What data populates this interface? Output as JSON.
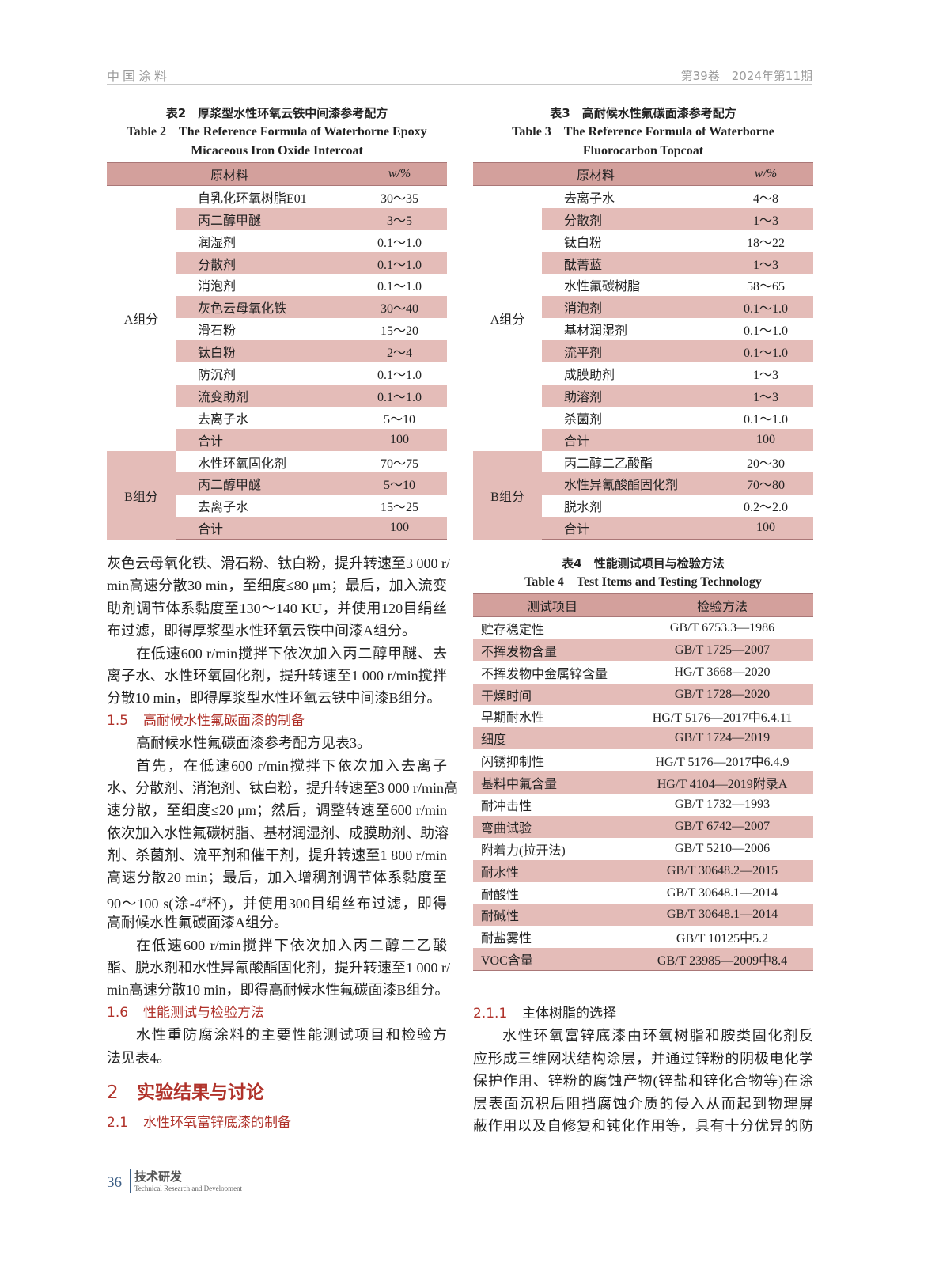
{
  "header": {
    "journal": "中国涂料",
    "issue": "第39卷　2024年第11期"
  },
  "table2": {
    "title_cn": "表2　厚浆型水性环氧云铁中间漆参考配方",
    "title_en_1": "Table 2　The Reference Formula of Waterborne Epoxy",
    "title_en_2": "Micaceous Iron Oxide Intercoat",
    "headers": [
      "原材料",
      "w/%"
    ],
    "groups": [
      {
        "name": "A组分",
        "rows": [
          [
            "自乳化环氧树脂E01",
            "30～35"
          ],
          [
            "丙二醇甲醚",
            "3～5"
          ],
          [
            "润湿剂",
            "0.1～1.0"
          ],
          [
            "分散剂",
            "0.1～1.0"
          ],
          [
            "消泡剂",
            "0.1～1.0"
          ],
          [
            "灰色云母氧化铁",
            "30～40"
          ],
          [
            "滑石粉",
            "15～20"
          ],
          [
            "钛白粉",
            "2～4"
          ],
          [
            "防沉剂",
            "0.1～1.0"
          ],
          [
            "流变助剂",
            "0.1～1.0"
          ],
          [
            "去离子水",
            "5～10"
          ],
          [
            "合计",
            "100"
          ]
        ]
      },
      {
        "name": "B组分",
        "rows": [
          [
            "水性环氧固化剂",
            "70～75"
          ],
          [
            "丙二醇甲醚",
            "5～10"
          ],
          [
            "去离子水",
            "15～25"
          ],
          [
            "合计",
            "100"
          ]
        ]
      }
    ]
  },
  "table3": {
    "title_cn": "表3　高耐候水性氟碳面漆参考配方",
    "title_en_1": "Table 3　The Reference Formula of Waterborne",
    "title_en_2": "Fluorocarbon Topcoat",
    "headers": [
      "原材料",
      "w/%"
    ],
    "groups": [
      {
        "name": "A组分",
        "rows": [
          [
            "去离子水",
            "4～8"
          ],
          [
            "分散剂",
            "1～3"
          ],
          [
            "钛白粉",
            "18～22"
          ],
          [
            "酞菁蓝",
            "1～3"
          ],
          [
            "水性氟碳树脂",
            "58～65"
          ],
          [
            "消泡剂",
            "0.1～1.0"
          ],
          [
            "基材润湿剂",
            "0.1～1.0"
          ],
          [
            "流平剂",
            "0.1～1.0"
          ],
          [
            "成膜助剂",
            "1～3"
          ],
          [
            "助溶剂",
            "1～3"
          ],
          [
            "杀菌剂",
            "0.1～1.0"
          ],
          [
            "合计",
            "100"
          ]
        ]
      },
      {
        "name": "B组分",
        "rows": [
          [
            "丙二醇二乙酸酯",
            "20～30"
          ],
          [
            "水性异氰酸酯固化剂",
            "70～80"
          ],
          [
            "脱水剂",
            "0.2～2.0"
          ],
          [
            "合计",
            "100"
          ]
        ]
      }
    ]
  },
  "table4": {
    "title_cn": "表4　性能测试项目与检验方法",
    "title_en": "Table 4　Test Items and Testing Technology",
    "headers": [
      "测试项目",
      "检验方法"
    ],
    "rows": [
      [
        "贮存稳定性",
        "GB/T 6753.3—1986"
      ],
      [
        "不挥发物含量",
        "GB/T 1725—2007"
      ],
      [
        "不挥发物中金属锌含量",
        "HG/T 3668—2020"
      ],
      [
        "干燥时间",
        "GB/T 1728—2020"
      ],
      [
        "早期耐水性",
        "HG/T 5176—2017中6.4.11"
      ],
      [
        "细度",
        "GB/T 1724—2019"
      ],
      [
        "闪锈抑制性",
        "HG/T 5176—2017中6.4.9"
      ],
      [
        "基料中氟含量",
        "HG/T 4104—2019附录A"
      ],
      [
        "耐冲击性",
        "GB/T 1732—1993"
      ],
      [
        "弯曲试验",
        "GB/T 6742—2007"
      ],
      [
        "附着力(拉开法)",
        "GB/T 5210—2006"
      ],
      [
        "耐水性",
        "GB/T 30648.2—2015"
      ],
      [
        "耐酸性",
        "GB/T 30648.1—2014"
      ],
      [
        "耐碱性",
        "GB/T 30648.1—2014"
      ],
      [
        "耐盐雾性",
        "GB/T 10125中5.2"
      ],
      [
        "VOC含量",
        "GB/T 23985—2009中8.4"
      ]
    ]
  },
  "left_column": {
    "blocks": [
      {
        "kind": "paragraph",
        "indent": false,
        "lines": [
          "灰色云母氧化铁、滑石粉、钛白粉，提升转速至3 000 r/",
          "min高速分散30 min，至细度≤80 μm；最后，加入流变",
          "助剂调节体系黏度至130～140 KU，并使用120目绢丝",
          "布过滤，即得厚浆型水性环氧云铁中间漆A组分。"
        ]
      },
      {
        "kind": "paragraph",
        "indent": true,
        "lines": [
          "在低速600 r/min搅拌下依次加入丙二醇甲醚、去",
          "离子水、水性环氧固化剂，提升转速至1 000 r/min搅拌",
          "分散10 min，即得厚浆型水性环氧云铁中间漆B组分。"
        ]
      },
      {
        "kind": "heading",
        "number": "1.5",
        "text": "高耐候水性氟碳面漆的制备"
      },
      {
        "kind": "paragraph",
        "indent": true,
        "lines": [
          "高耐候水性氟碳面漆参考配方见表3。"
        ]
      },
      {
        "kind": "paragraph",
        "indent": true,
        "lines": [
          "首先，在低速600 r/min搅拌下依次加入去离子",
          "水、分散剂、消泡剂、钛白粉，提升转速至3 000 r/min高",
          "速分散，至细度≤20 μm；然后，调整转速至600 r/min",
          "依次加入水性氟碳树脂、基材润湿剂、成膜助剂、助溶",
          "剂、杀菌剂、流平剂和催干剂，提升转速至1 800 r/min",
          "高速分散20 min；最后，加入增稠剂调节体系黏度至",
          {
            "text": "90～100 s(涂-4",
            "sup": "#",
            "after": "杯)，并使用300目绢丝布过滤，即得"
          },
          "高耐候水性氟碳面漆A组分。"
        ]
      },
      {
        "kind": "paragraph",
        "indent": true,
        "lines": [
          "在低速600 r/min搅拌下依次加入丙二醇二乙酸",
          "酯、脱水剂和水性异氰酸酯固化剂，提升转速至1 000 r/",
          "min高速分散10 min，即得高耐候水性氟碳面漆B组分。"
        ]
      },
      {
        "kind": "heading",
        "number": "1.6",
        "text": "性能测试与检验方法"
      },
      {
        "kind": "paragraph",
        "indent": true,
        "lines": [
          "水性重防腐涂料的主要性能测试项目和检验方",
          "法见表4。"
        ]
      },
      {
        "kind": "section",
        "number": "2",
        "text": "实验结果与讨论"
      },
      {
        "kind": "heading",
        "number": "2.1",
        "text": "水性环氧富锌底漆的制备"
      }
    ]
  },
  "right_column": {
    "blocks": [
      {
        "kind": "subheading",
        "number": "2.1.1",
        "text": "主体树脂的选择"
      },
      {
        "kind": "paragraph",
        "indent": true,
        "continues": true,
        "lines": [
          "水性环氧富锌底漆由环氧树脂和胺类固化剂反",
          "应形成三维网状结构涂层，并通过锌粉的阴极电化学",
          "保护作用、锌粉的腐蚀产物(锌盐和锌化合物等)在涂",
          "层表面沉积后阻挡腐蚀介质的侵入从而起到物理屏",
          "蔽作用以及自修复和钝化作用等，具有十分优异的防"
        ]
      }
    ]
  },
  "footer": {
    "page_number": "36",
    "section_cn": "技术研发",
    "section_en": "Technical Research and Development"
  },
  "colors": {
    "heading_red": "#b0322a",
    "table_header": "#d3a09c",
    "table_stripe": "#e4bcb8",
    "footer_blue": "#3d5f86"
  }
}
